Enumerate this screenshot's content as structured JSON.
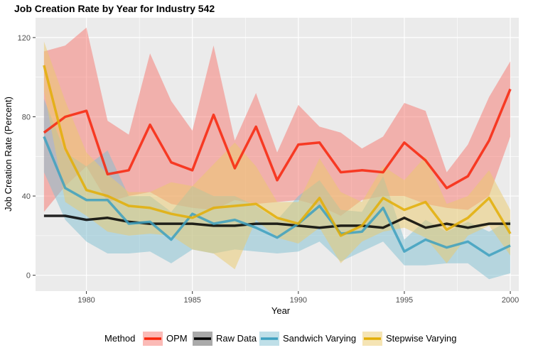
{
  "chart_data": {
    "type": "line",
    "title": "Job Creation Rate by Year for Industry 542",
    "xlabel": "Year",
    "ylabel": "Job Creation Rate (Percent)",
    "xlim": [
      1977.6,
      2000.4
    ],
    "ylim": [
      -8,
      130
    ],
    "x_ticks": [
      1980,
      1985,
      1990,
      1995,
      2000
    ],
    "y_ticks": [
      0,
      40,
      80,
      120
    ],
    "legend_title": "Method",
    "legend_position": "bottom",
    "x": [
      1978,
      1979,
      1980,
      1981,
      1982,
      1983,
      1984,
      1985,
      1986,
      1987,
      1988,
      1989,
      1990,
      1991,
      1992,
      1993,
      1994,
      1995,
      1996,
      1997,
      1998,
      1999,
      2000
    ],
    "series": [
      {
        "name": "OPM",
        "color": "#F8250A",
        "band_color": "#F8766D",
        "values": [
          72,
          80,
          83,
          51,
          53,
          76,
          57,
          53,
          81,
          54,
          75,
          48,
          66,
          67,
          52,
          53,
          52,
          67,
          58,
          44,
          50,
          68,
          94
        ],
        "lower": [
          32,
          45,
          55,
          37,
          40,
          42,
          36,
          34,
          33,
          38,
          36,
          37,
          38,
          35,
          30,
          38,
          40,
          40,
          36,
          34,
          33,
          40,
          70
        ],
        "upper": [
          113,
          116,
          125,
          78,
          71,
          112,
          88,
          73,
          116,
          68,
          92,
          62,
          86,
          75,
          72,
          64,
          70,
          87,
          83,
          52,
          66,
          90,
          108
        ]
      },
      {
        "name": "Raw Data",
        "color": "#000000",
        "band_color": "#555555",
        "values": [
          30,
          30,
          28,
          29,
          27,
          26,
          26,
          26,
          25,
          25,
          26,
          26,
          25,
          24,
          25,
          25,
          24,
          29,
          24,
          26,
          24,
          26,
          26
        ],
        "lower": [
          30,
          30,
          28,
          29,
          27,
          26,
          26,
          26,
          25,
          25,
          26,
          26,
          25,
          24,
          25,
          25,
          24,
          29,
          24,
          26,
          24,
          26,
          26
        ],
        "upper": [
          30,
          30,
          28,
          29,
          27,
          26,
          26,
          26,
          25,
          25,
          26,
          26,
          25,
          24,
          25,
          25,
          24,
          29,
          24,
          26,
          24,
          26,
          26
        ]
      },
      {
        "name": "Sandwich Varying",
        "color": "#3DA0C0",
        "band_color": "#7FBFD2",
        "values": [
          70,
          44,
          38,
          38,
          26,
          27,
          18,
          31,
          26,
          28,
          24,
          19,
          26,
          35,
          21,
          22,
          34,
          12,
          18,
          14,
          17,
          10,
          15
        ],
        "lower": [
          52,
          28,
          17,
          11,
          11,
          12,
          6,
          13,
          11,
          13,
          12,
          11,
          12,
          17,
          7,
          12,
          17,
          5,
          5,
          6,
          6,
          -2,
          1
        ],
        "upper": [
          89,
          62,
          55,
          63,
          40,
          40,
          32,
          45,
          40,
          40,
          35,
          28,
          40,
          48,
          33,
          32,
          50,
          18,
          28,
          22,
          27,
          22,
          28
        ]
      },
      {
        "name": "Stepwise Varying",
        "color": "#E3AE06",
        "band_color": "#EBC96A",
        "values": [
          106,
          64,
          43,
          40,
          35,
          34,
          31,
          29,
          34,
          35,
          36,
          29,
          26,
          39,
          20,
          25,
          39,
          33,
          37,
          23,
          29,
          39,
          21
        ],
        "lower": [
          93,
          37,
          30,
          22,
          20,
          21,
          20,
          13,
          11,
          3,
          28,
          19,
          16,
          24,
          6,
          17,
          22,
          24,
          19,
          6,
          20,
          25,
          10
        ],
        "upper": [
          118,
          88,
          62,
          51,
          42,
          42,
          47,
          45,
          56,
          67,
          55,
          37,
          37,
          59,
          42,
          37,
          55,
          48,
          60,
          36,
          40,
          53,
          33
        ]
      }
    ]
  }
}
